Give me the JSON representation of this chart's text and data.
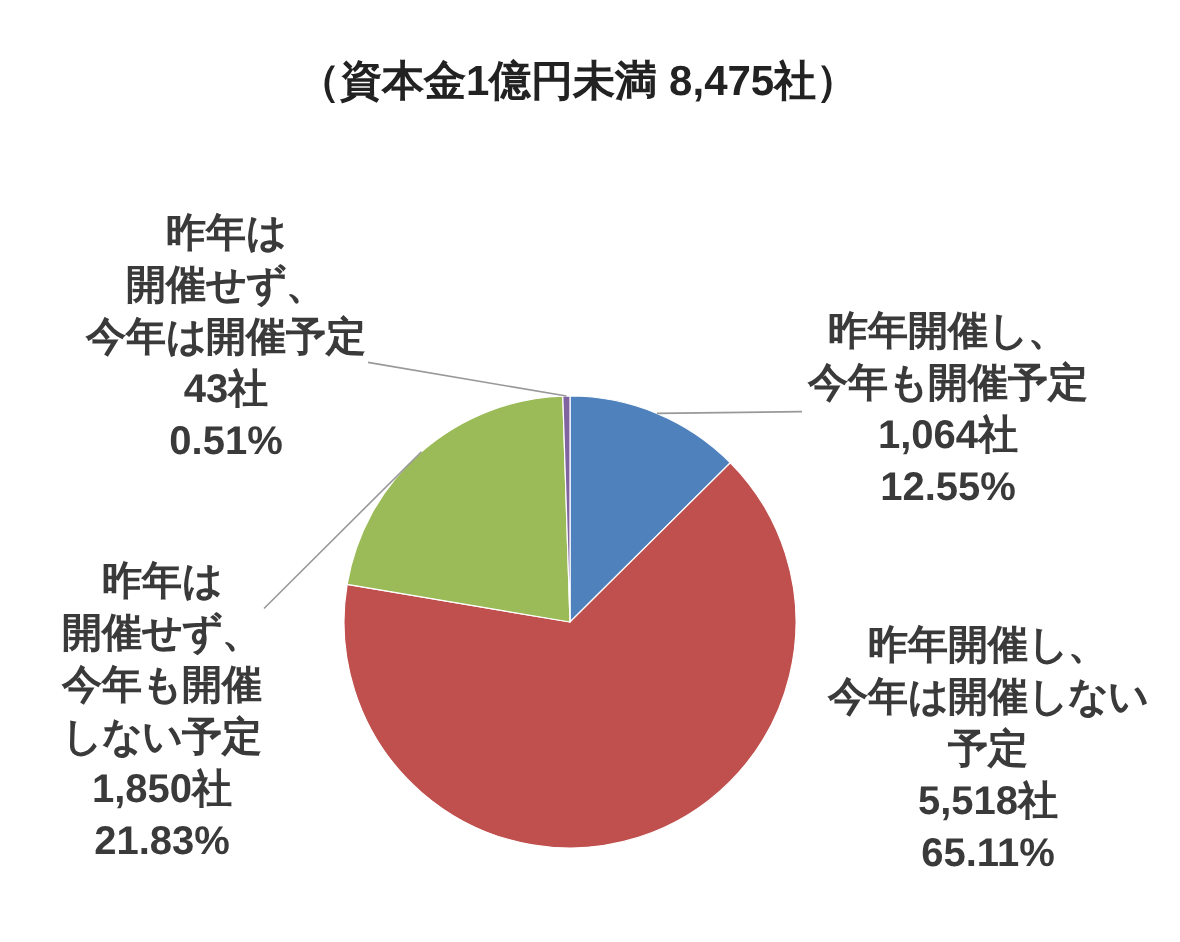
{
  "chart_data": {
    "type": "pie",
    "title": "（資本金1億円未満 8,475社）",
    "categories": [
      "昨年開催し、今年も開催予定",
      "昨年開催し、今年は開催しない予定",
      "昨年は開催せず、今年も開催しない予定",
      "昨年は開催せず、今年は開催予定"
    ],
    "values": [
      1064,
      5518,
      1850,
      43
    ],
    "colors": [
      "#4f81bd",
      "#c0504d",
      "#9bbb59",
      "#8064a2"
    ],
    "value_labels": [
      "1,064社\n12.55%",
      "5,518社\n65.11%",
      "1,850社\n21.83%",
      "43社\n0.51%"
    ]
  }
}
